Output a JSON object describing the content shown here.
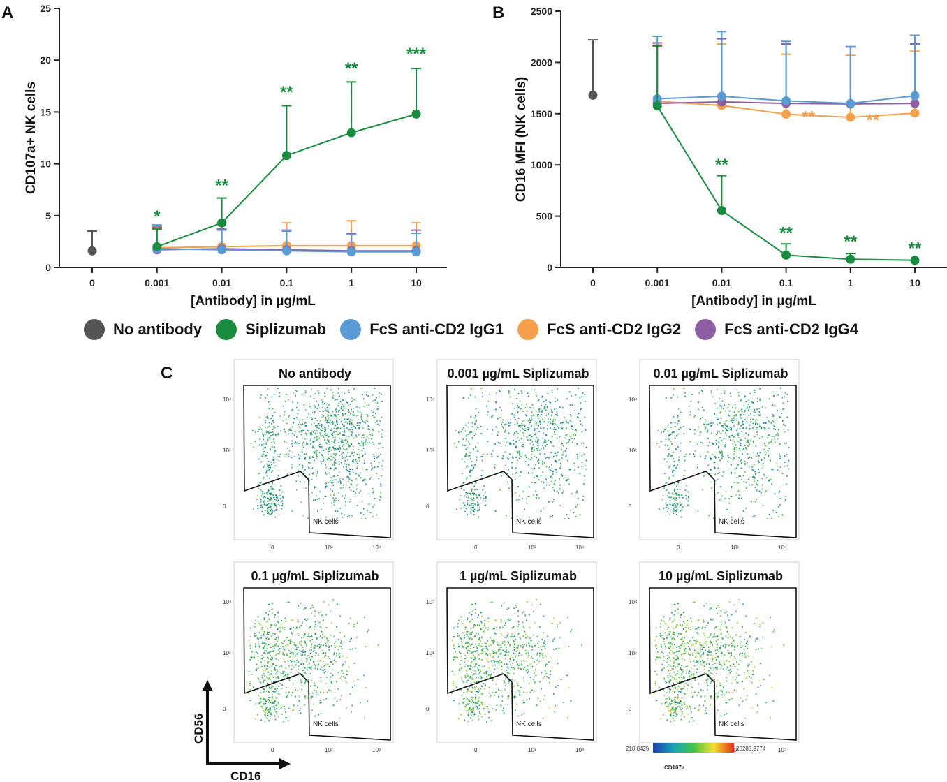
{
  "panels": {
    "a": "A",
    "b": "B",
    "c": "C"
  },
  "colors": {
    "No antibody": "#555555",
    "Siplizumab": "#1a8c3f",
    "FcS anti-CD2 IgG1": "#5b9bd5",
    "FcS anti-CD2 IgG2": "#f5a04a",
    "FcS anti-CD2 IgG4": "#8e5ea2"
  },
  "legend": [
    "No antibody",
    "Siplizumab",
    "FcS anti-CD2 IgG1",
    "FcS anti-CD2 IgG2",
    "FcS anti-CD2 IgG4"
  ],
  "chart_data": [
    {
      "type": "line",
      "panel": "A",
      "xlabel": "[Antibody] in µg/mL",
      "ylabel": "CD107a+ NK cells",
      "categories": [
        "0",
        "0.001",
        "0.01",
        "0.1",
        "1",
        "10"
      ],
      "ylim": [
        0,
        25
      ],
      "yticks": [
        0,
        5,
        10,
        15,
        20,
        25
      ],
      "series": [
        {
          "name": "No antibody",
          "values": [
            1.6,
            null,
            null,
            null,
            null,
            null
          ],
          "error_upper": [
            3.5,
            null,
            null,
            null,
            null,
            null
          ]
        },
        {
          "name": "FcS anti-CD2 IgG2",
          "values": [
            null,
            1.9,
            2.0,
            2.1,
            2.1,
            2.1
          ],
          "error_upper": [
            null,
            3.8,
            4.3,
            4.3,
            4.5,
            4.3
          ]
        },
        {
          "name": "FcS anti-CD2 IgG4",
          "values": [
            null,
            1.7,
            1.8,
            1.7,
            1.6,
            1.6
          ],
          "error_upper": [
            null,
            3.9,
            3.7,
            3.6,
            3.3,
            3.6
          ]
        },
        {
          "name": "FcS anti-CD2 IgG1",
          "values": [
            null,
            1.8,
            1.7,
            1.6,
            1.5,
            1.5
          ],
          "error_upper": [
            null,
            4.1,
            3.6,
            3.5,
            3.2,
            3.3
          ]
        },
        {
          "name": "Siplizumab",
          "values": [
            null,
            2.0,
            4.3,
            10.8,
            13.0,
            14.8
          ],
          "error_upper": [
            null,
            3.7,
            6.7,
            15.6,
            17.9,
            19.2
          ]
        }
      ],
      "annotations": [
        {
          "category": "0.001",
          "text": "*",
          "y": 4.1,
          "color": "#1a8c3f"
        },
        {
          "category": "0.01",
          "text": "**",
          "y": 7.1,
          "color": "#1a8c3f"
        },
        {
          "category": "0.1",
          "text": "**",
          "y": 16.1,
          "color": "#1a8c3f"
        },
        {
          "category": "1",
          "text": "**",
          "y": 18.4,
          "color": "#1a8c3f"
        },
        {
          "category": "10",
          "text": "***",
          "y": 19.8,
          "color": "#1a8c3f"
        }
      ]
    },
    {
      "type": "line",
      "panel": "B",
      "xlabel": "[Antibody] in µg/mL",
      "ylabel": "CD16 MFI (NK cells)",
      "categories": [
        "0",
        "0.001",
        "0.01",
        "0.1",
        "1",
        "10"
      ],
      "ylim": [
        0,
        2500
      ],
      "yticks": [
        0,
        500,
        1000,
        1500,
        2000,
        2500
      ],
      "series": [
        {
          "name": "No antibody",
          "values": [
            1680,
            null,
            null,
            null,
            null,
            null
          ],
          "error_upper": [
            2220,
            null,
            null,
            null,
            null,
            null
          ]
        },
        {
          "name": "FcS anti-CD2 IgG2",
          "values": [
            null,
            1620,
            1580,
            1495,
            1465,
            1505
          ],
          "error_upper": [
            null,
            2170,
            2180,
            2080,
            2070,
            2110
          ]
        },
        {
          "name": "FcS anti-CD2 IgG4",
          "values": [
            null,
            1600,
            1615,
            1600,
            1595,
            1600
          ],
          "error_upper": [
            null,
            2190,
            2230,
            2180,
            2150,
            2180
          ]
        },
        {
          "name": "FcS anti-CD2 IgG1",
          "values": [
            null,
            1645,
            1670,
            1625,
            1600,
            1675
          ],
          "error_upper": [
            null,
            2255,
            2300,
            2205,
            2155,
            2265
          ]
        },
        {
          "name": "Siplizumab",
          "values": [
            null,
            1575,
            555,
            120,
            80,
            70
          ],
          "error_upper": [
            null,
            2160,
            895,
            230,
            135,
            null
          ]
        }
      ],
      "annotations": [
        {
          "category": "0.01",
          "text": "**",
          "y": 920,
          "color": "#1a8c3f"
        },
        {
          "category": "0.1",
          "text": "**",
          "y": 255,
          "color": "#1a8c3f"
        },
        {
          "category": "1",
          "text": "**",
          "y": 170,
          "color": "#1a8c3f"
        },
        {
          "category": "10",
          "text": "**",
          "y": 105,
          "color": "#1a8c3f"
        },
        {
          "category": "0.1",
          "text": "**",
          "y": 1495,
          "color": "#f5a04a",
          "side": "right"
        },
        {
          "category": "1",
          "text": "**",
          "y": 1465,
          "color": "#f5a04a",
          "side": "right"
        }
      ]
    }
  ],
  "flow": {
    "panel": "C",
    "gate_label": "NK cells",
    "axis_y": "CD56",
    "axis_x": "CD16",
    "tick_labels": {
      "t0": "0",
      "t3": "10³",
      "t4": "10⁴"
    },
    "colorbar": {
      "min": "210,0425",
      "max": "26285,9774",
      "label": "CD107a"
    },
    "plots": [
      {
        "title": "No antibody",
        "cd56": "high",
        "cd16": "high",
        "activation": 0.1
      },
      {
        "title": "0.001 µg/mL Siplizumab",
        "cd56": "high",
        "cd16": "high",
        "activation": 0.12
      },
      {
        "title": "0.01 µg/mL Siplizumab",
        "cd56": "high",
        "cd16": "high",
        "activation": 0.18
      },
      {
        "title": "0.1 µg/mL Siplizumab",
        "cd56": "mid",
        "cd16": "low",
        "activation": 0.4
      },
      {
        "title": "1 µg/mL Siplizumab",
        "cd56": "mid",
        "cd16": "low",
        "activation": 0.48
      },
      {
        "title": "10 µg/mL Siplizumab",
        "cd56": "mid",
        "cd16": "low",
        "activation": 0.55
      }
    ]
  }
}
